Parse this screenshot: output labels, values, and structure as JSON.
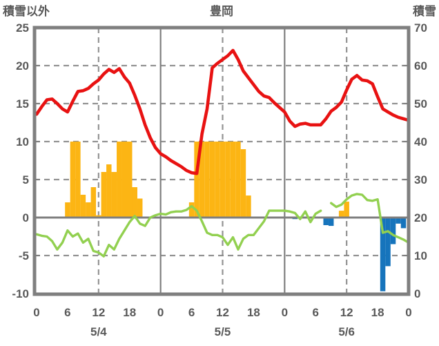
{
  "header": {
    "left_axis_title": "積雪以外",
    "title": "豊岡",
    "right_axis_title": "積雪"
  },
  "chart_data": {
    "type": "combo",
    "title": "豊岡",
    "station": "豊岡",
    "hours_span": 72,
    "left_axis": {
      "title": "積雪以外",
      "min": -10,
      "max": 25,
      "ticks": [
        25,
        20,
        15,
        10,
        5,
        0,
        -5,
        -10
      ]
    },
    "right_axis": {
      "title": "積雪",
      "min": 0,
      "max": 70,
      "ticks": [
        70,
        60,
        50,
        40,
        30,
        20,
        10,
        0
      ]
    },
    "x_axis": {
      "tick_hours": [
        0,
        6,
        12,
        18,
        24,
        30,
        36,
        42,
        48,
        54,
        60,
        66,
        72
      ],
      "tick_labels": [
        "0",
        "6",
        "12",
        "18",
        "0",
        "6",
        "12",
        "18",
        "0",
        "6",
        "12",
        "18",
        "0"
      ],
      "date_labels": [
        {
          "hour": 12,
          "label": "5/4"
        },
        {
          "hour": 36,
          "label": "5/5"
        },
        {
          "hour": 60,
          "label": "5/6"
        }
      ],
      "gridlines_dashed_hours": [
        12,
        36,
        60
      ],
      "gridlines_solid_hours": [
        24,
        48
      ]
    },
    "gridlines_dashed_values": [
      20,
      15,
      10,
      5,
      -5
    ],
    "zero_line_value": 0,
    "colors": {
      "temperature": "#e81212",
      "green_line": "#92d050",
      "sunshine": "#fcb514",
      "precipitation": "#1674bc",
      "grid": "#7f7f7f",
      "text": "#595959"
    },
    "series": [
      {
        "id": "temperature-line",
        "type": "line",
        "axis": "left",
        "color_key": "temperature",
        "values": [
          13.6,
          14.6,
          15.5,
          15.6,
          15.0,
          14.3,
          13.9,
          15.3,
          16.6,
          16.7,
          17.0,
          17.6,
          18.1,
          18.9,
          19.5,
          19.1,
          19.6,
          18.5,
          17.7,
          16.1,
          14.3,
          12.2,
          10.5,
          9.2,
          8.4,
          8.0,
          7.5,
          7.1,
          6.7,
          6.2,
          5.9,
          5.8,
          11.0,
          14.3,
          19.7,
          20.3,
          20.8,
          21.3,
          22.0,
          20.8,
          19.3,
          18.4,
          17.5,
          16.6,
          16.0,
          15.8,
          15.1,
          14.5,
          13.9,
          12.7,
          12.0,
          12.3,
          12.4,
          12.2,
          12.2,
          12.2,
          13.0,
          14.0,
          14.5,
          15.2,
          16.8,
          18.2,
          18.7,
          18.1,
          18.0,
          17.6,
          15.9,
          14.3,
          13.9,
          13.5,
          13.2,
          13.0,
          12.8
        ]
      },
      {
        "id": "green-line",
        "type": "line",
        "axis": "left",
        "color_key": "green_line",
        "values": [
          -2.2,
          -2.4,
          -2.5,
          -3.1,
          -4.2,
          -3.3,
          -1.7,
          -2.5,
          -2.1,
          -3.3,
          -2.8,
          -4.4,
          -4.6,
          -5.1,
          -3.6,
          -4.2,
          -2.8,
          -1.7,
          -0.6,
          0.2,
          -0.8,
          -1.1,
          0.0,
          0.3,
          0.5,
          0.4,
          0.7,
          0.8,
          0.8,
          1.0,
          1.5,
          0.9,
          -0.5,
          -2.0,
          -2.3,
          -2.3,
          -2.6,
          -3.6,
          -2.6,
          -4.2,
          -2.8,
          -2.3,
          -2.3,
          -1.4,
          -0.5,
          0.9,
          0.9,
          0.9,
          0.9,
          0.8,
          0.6,
          -0.2,
          0.8,
          -0.6,
          0.5,
          0.9,
          null,
          1.9,
          1.4,
          1.7,
          2.4,
          2.9,
          3.1,
          3.0,
          2.3,
          2.2,
          2.4,
          -2.0,
          -1.8,
          -2.3,
          -2.6,
          -2.9,
          -3.3
        ]
      },
      {
        "id": "sunshine-bars",
        "type": "bar",
        "axis": "left",
        "color_key": "sunshine",
        "values": [
          0,
          0,
          0,
          0,
          0,
          0,
          2,
          10,
          10,
          3,
          2,
          4,
          0.3,
          6,
          7,
          6,
          10,
          10,
          10,
          4,
          2.5,
          0,
          0,
          0,
          0,
          0,
          0,
          0,
          0,
          0,
          2,
          10,
          10,
          10,
          10,
          10,
          10,
          10,
          10,
          10,
          9,
          2.9,
          0,
          0,
          0,
          0,
          0,
          0,
          0,
          0,
          0,
          0,
          0,
          0,
          0,
          0,
          0,
          0,
          0,
          0.9,
          2.1,
          0,
          0,
          0,
          0,
          0,
          0,
          0,
          0,
          0,
          0,
          0
        ]
      },
      {
        "id": "precipitation-bars",
        "type": "bar",
        "axis": "left",
        "color_key": "precipitation",
        "values": [
          0,
          0,
          0,
          0,
          0,
          0,
          0,
          0,
          0,
          0,
          0,
          0,
          0,
          0,
          0,
          0,
          0,
          0,
          0,
          0,
          0,
          0,
          0,
          0,
          0,
          0,
          0,
          0,
          0,
          0,
          0,
          0,
          0,
          0,
          0,
          0,
          0,
          0,
          0,
          0,
          0,
          0,
          0,
          0,
          0,
          0,
          0,
          0,
          0,
          0,
          -0.2,
          0,
          0,
          -0.1,
          -0.1,
          -0.1,
          -1.0,
          -1.1,
          0,
          0,
          0,
          0,
          0,
          0,
          0,
          0,
          0,
          -9.7,
          -6.4,
          -3.5,
          -0.8,
          -1.4
        ]
      }
    ]
  }
}
